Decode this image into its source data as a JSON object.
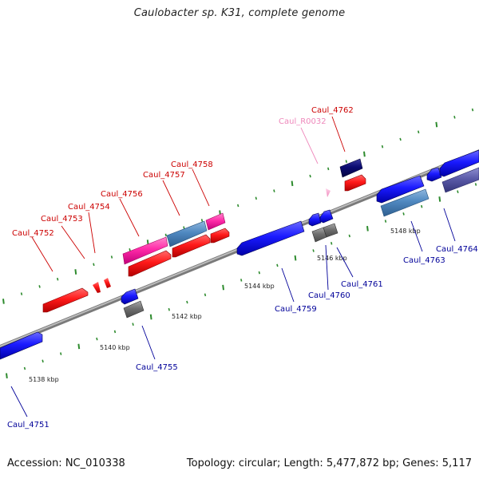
{
  "title": "Caulobacter sp. K31, complete genome",
  "footer": {
    "accession": "Accession: NC_010338",
    "summary": "Topology: circular; Length: 5,477,872 bp; Genes: 5,117"
  },
  "colors": {
    "plus_label": "#cc0000",
    "minus_label": "#000099",
    "rna_label": "#ee88bb",
    "backbone": "#8c8c8c",
    "tick": "#2e8b2e"
  },
  "kbp_ticks": [
    {
      "text": "5138 kbp"
    },
    {
      "text": "5140 kbp"
    },
    {
      "text": "5142 kbp"
    },
    {
      "text": "5144 kbp"
    },
    {
      "text": "5146 kbp"
    },
    {
      "text": "5148 kbp"
    }
  ],
  "genes": [
    {
      "name": "Caul_4751",
      "strand": "minus"
    },
    {
      "name": "Caul_4752",
      "strand": "plus"
    },
    {
      "name": "Caul_4753",
      "strand": "plus"
    },
    {
      "name": "Caul_4754",
      "strand": "plus"
    },
    {
      "name": "Caul_4755",
      "strand": "minus"
    },
    {
      "name": "Caul_4756",
      "strand": "plus"
    },
    {
      "name": "Caul_4757",
      "strand": "plus"
    },
    {
      "name": "Caul_4758",
      "strand": "plus"
    },
    {
      "name": "Caul_4759",
      "strand": "minus"
    },
    {
      "name": "Caul_4760",
      "strand": "minus"
    },
    {
      "name": "Caul_4761",
      "strand": "minus"
    },
    {
      "name": "Caul_R0032",
      "strand": "rna"
    },
    {
      "name": "Caul_4762",
      "strand": "plus"
    },
    {
      "name": "Caul_4763",
      "strand": "minus"
    },
    {
      "name": "Caul_4764",
      "strand": "minus"
    }
  ]
}
